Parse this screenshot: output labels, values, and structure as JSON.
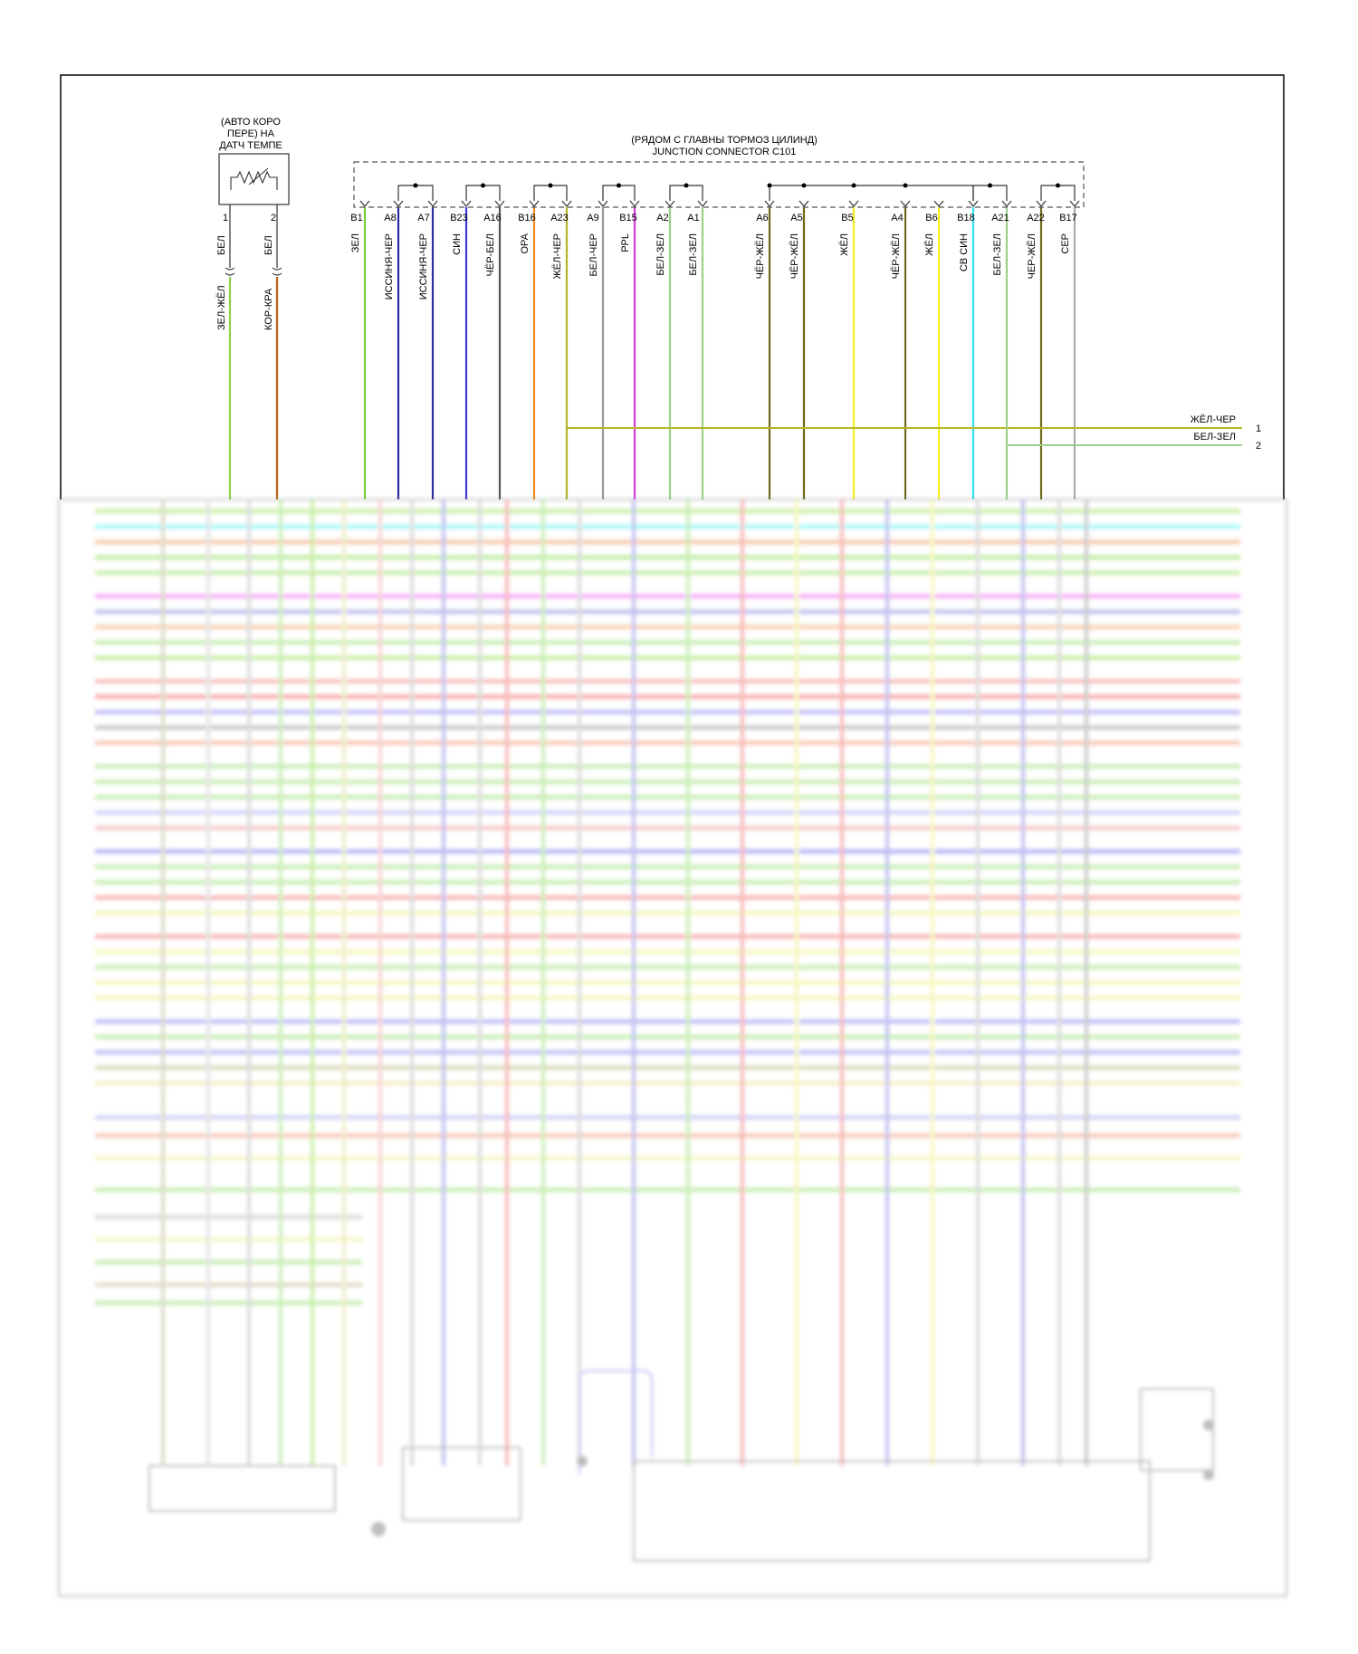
{
  "sensor": {
    "caption_lines": [
      "(АВТО КОРО",
      "ПЕРЕ) НА",
      "ДАТЧ ТЕМПЕ"
    ],
    "pins": [
      {
        "num": "1",
        "pin_wire": "БЕЛ",
        "harness_wire": "ЗЕЛ-ЖЁЛ",
        "color": "#8fd14f"
      },
      {
        "num": "2",
        "pin_wire": "БЕЛ",
        "harness_wire": "КОР-КРА",
        "color": "#b8651b"
      }
    ]
  },
  "junction": {
    "caption_lines": [
      "(РЯДОМ С ГЛАВНЫ ТОРМОЗ ЦИЛИНД)",
      "JUNCTION CONNECTOR C101"
    ],
    "pins": [
      {
        "pin": "B1",
        "wire": "ЗЕЛ",
        "color": "#72d13c"
      },
      {
        "pin": "A8",
        "wire": "ИССИНЯ-ЧЕР",
        "color": "#2c2c9e"
      },
      {
        "pin": "A7",
        "wire": "ИССИНЯ-ЧЕР",
        "color": "#2c2c9e"
      },
      {
        "pin": "B23",
        "wire": "СИН",
        "color": "#3a3ad6"
      },
      {
        "pin": "A16",
        "wire": "ЧЁР-БЕЛ",
        "color": "#555555"
      },
      {
        "pin": "B16",
        "wire": "ОРА",
        "color": "#f08a1c"
      },
      {
        "pin": "A23",
        "wire": "ЖЁЛ-ЧЕР",
        "color": "#b5b52a"
      },
      {
        "pin": "A9",
        "wire": "БЕЛ-ЧЕР",
        "color": "#999999"
      },
      {
        "pin": "B15",
        "wire": "PPL",
        "color": "#d63ad6"
      },
      {
        "pin": "A2",
        "wire": "БЕЛ-ЗЕЛ",
        "color": "#9ccf8a"
      },
      {
        "pin": "A1",
        "wire": "БЕЛ-ЗЕЛ",
        "color": "#9ccf8a"
      },
      {
        "pin": "A6",
        "wire": "ЧЁР-ЖЁЛ",
        "color": "#6b6b1a"
      },
      {
        "pin": "A5",
        "wire": "ЧЁР-ЖЁЛ",
        "color": "#6b6b1a"
      },
      {
        "pin": "B5",
        "wire": "ЖЁЛ",
        "color": "#f0f020"
      },
      {
        "pin": "A4",
        "wire": "ЧЁР-ЖЁЛ",
        "color": "#6b6b1a"
      },
      {
        "pin": "B6",
        "wire": "ЖЁЛ",
        "color": "#f0f020"
      },
      {
        "pin": "B18",
        "wire": "СВ СИН",
        "color": "#2ee0f0"
      },
      {
        "pin": "A21",
        "wire": "БЕЛ-ЗЕЛ",
        "color": "#9ccf8a"
      },
      {
        "pin": "A22",
        "wire": "ЧЕР-ЖЁЛ",
        "color": "#6b6b1a"
      },
      {
        "pin": "B17",
        "wire": "СЕР",
        "color": "#aaaaaa"
      }
    ]
  },
  "outputs": [
    {
      "wire": "ЖЁЛ-ЧЕР",
      "num": "1",
      "color": "#b5b52a"
    },
    {
      "wire": "БЕЛ-ЗЕЛ",
      "num": "2",
      "color": "#9ccf8a"
    }
  ]
}
